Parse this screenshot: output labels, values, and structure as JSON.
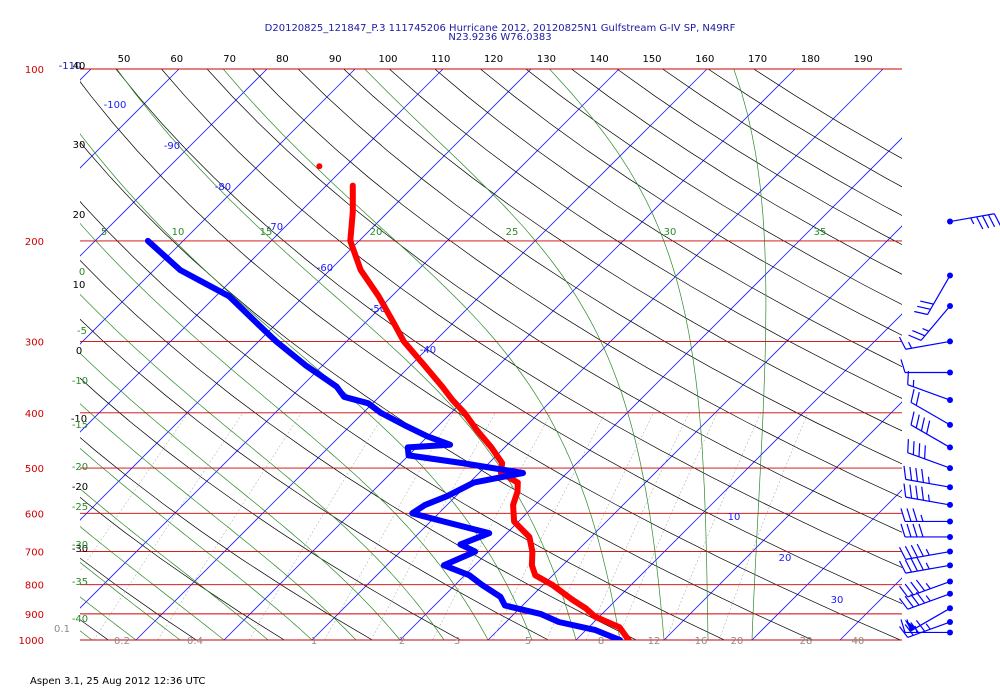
{
  "header": {
    "line1": "D20120825_121847_P.3 111745206 Hurricane 2012, 20120825N1 Gulfstream G-IV SP, N49RF",
    "line2": "N23.9236 W76.0383"
  },
  "footer": "Aspen 3.1, 25 Aug 2012  12:36 UTC",
  "colors": {
    "isobar": "#cc0000",
    "isotherm": "#1a1aff",
    "dry_adiabat": "#000000",
    "moist_adiabat": "#2b8a2b",
    "mixing_ratio": "#000000",
    "temperature": "#ff0000",
    "dewpoint": "#0000ff",
    "wind_barb": "#0000ff"
  },
  "chart_data": {
    "type": "skew-t",
    "xlabel": "",
    "ylabel": "",
    "ylim_hpa": [
      1000,
      100
    ],
    "pressure_ticks": [
      "100",
      "200",
      "300",
      "400",
      "500",
      "600",
      "700",
      "800",
      "900",
      "1000"
    ],
    "top_ticks": [
      "50",
      "60",
      "70",
      "80",
      "90",
      "100",
      "110",
      "120",
      "130",
      "140",
      "150",
      "160",
      "170",
      "180",
      "190"
    ],
    "left_ticks": [
      "-110",
      "40",
      "30",
      "20",
      "10",
      "0",
      "-10",
      "-20",
      "-30"
    ],
    "isotherm_labels": [
      "-100",
      "-90",
      "-80",
      "-70",
      "-60",
      "-50",
      "-40",
      "10",
      "20",
      "30"
    ],
    "moist_adiabat_labels": [
      "5",
      "10",
      "15",
      "20",
      "25",
      "30",
      "35",
      "0",
      "-5",
      "-10",
      "-15",
      "-20",
      "-25",
      "-30",
      "-35",
      "-40"
    ],
    "mixing_ratio_labels": [
      "0.1",
      "0.2",
      "0.4",
      "1",
      "2",
      "3",
      "5",
      "8",
      "12",
      "16",
      "20",
      "28",
      "40"
    ],
    "series": [
      {
        "name": "",
        "pressure_hpa": [
          160,
          178,
          200,
          225,
          250,
          280,
          300,
          330,
          360,
          380,
          400,
          430,
          460,
          490,
          510,
          530,
          550,
          580,
          620,
          660,
          700,
          740,
          770,
          800,
          850,
          880,
          910,
          950,
          980,
          1000
        ],
        "temp_c": [
          -57,
          -54,
          -51,
          -46.5,
          -41.5,
          -36.5,
          -33.5,
          -28.5,
          -24,
          -21.3,
          -18.5,
          -15,
          -11.5,
          -8.5,
          -7.5,
          -4.5,
          -3.5,
          -2.5,
          -0.5,
          3,
          5,
          6.5,
          8,
          11,
          15,
          17.5,
          19.5,
          23.5,
          25,
          26
        ]
      },
      {
        "name": "",
        "pressure_hpa": [
          200,
          225,
          250,
          280,
          300,
          330,
          360,
          375,
          385,
          400,
          420,
          440,
          455,
          460,
          475,
          490,
          510,
          530,
          560,
          580,
          600,
          620,
          650,
          680,
          700,
          740,
          770,
          800,
          840,
          870,
          900,
          930,
          960,
          990,
          1000
        ],
        "dewpoint_c": [
          -74,
          -67,
          -58.5,
          -52,
          -48,
          -42,
          -36,
          -34,
          -30.5,
          -28,
          -24,
          -20,
          -16.5,
          -21,
          -20,
          -13,
          -5,
          -9.5,
          -11,
          -12.5,
          -13,
          -8.5,
          -2,
          -4,
          -1.5,
          -3.5,
          0.5,
          3,
          6.5,
          8,
          13,
          16,
          21,
          24,
          25
        ]
      }
    ],
    "wind_profile": {
      "pressure_hpa": [
        185,
        230,
        260,
        300,
        340,
        380,
        420,
        460,
        500,
        540,
        580,
        620,
        660,
        700,
        740,
        790,
        830,
        880,
        930,
        970
      ],
      "direction_deg": [
        80,
        210,
        220,
        260,
        270,
        290,
        300,
        300,
        290,
        280,
        280,
        270,
        270,
        260,
        260,
        250,
        250,
        240,
        250,
        270
      ],
      "speed_kt": [
        45,
        30,
        25,
        15,
        10,
        15,
        20,
        40,
        40,
        45,
        45,
        35,
        40,
        45,
        45,
        45,
        45,
        50,
        45,
        25
      ]
    }
  }
}
